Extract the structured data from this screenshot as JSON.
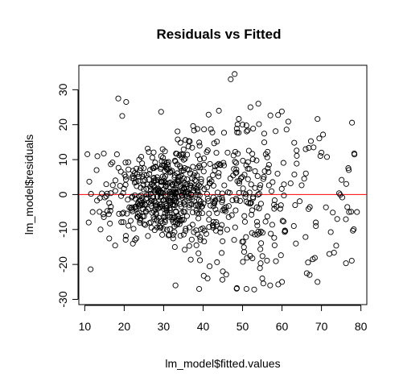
{
  "chart_data": {
    "type": "scatter",
    "title": "Residuals vs Fitted",
    "xlabel": "lm_model$fitted.values",
    "ylabel": "lm_model$residuals",
    "xlim": [
      8.5,
      81.5
    ],
    "ylim": [
      -31.5,
      37
    ],
    "xticks": [
      10,
      20,
      30,
      40,
      50,
      60,
      70,
      80
    ],
    "yticks": [
      -30,
      -20,
      -10,
      0,
      10,
      20,
      30
    ],
    "reference_line": {
      "y": 0,
      "color": "#ff0000"
    },
    "marker": "open-circle",
    "grid": false,
    "n_points": 800,
    "representative_points": {
      "x": [
        19.5,
        20.5,
        18.5,
        47,
        48,
        52,
        54,
        50,
        44,
        66,
        68,
        70,
        74,
        77,
        79,
        67,
        69,
        57,
        60,
        33,
        39,
        51,
        12,
        11,
        13,
        14,
        45,
        55,
        63,
        72
      ],
      "y": [
        22.5,
        26.5,
        27.5,
        33,
        34.5,
        25,
        26,
        20,
        24,
        13,
        13.5,
        12,
        -7,
        -5,
        -5,
        -23,
        -25,
        -26,
        -25,
        -26,
        -27,
        -27,
        -5,
        -8,
        7,
        -10,
        -22,
        -24,
        -9,
        -17
      ]
    }
  }
}
